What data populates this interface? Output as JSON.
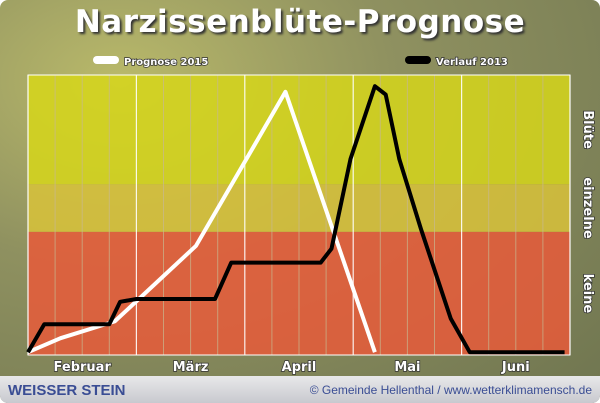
{
  "chart_data": {
    "type": "line",
    "title": "Narzissenblüte-Prognose",
    "x_unit": "weeks from start of Februar",
    "xlim": [
      0,
      20
    ],
    "x_tick_labels": [
      "Februar",
      "März",
      "April",
      "Mai",
      "Juni"
    ],
    "y_band_labels": [
      "keine",
      "einzelne",
      "Blüte"
    ],
    "ylim": [
      0,
      100
    ],
    "bands": [
      {
        "label": "keine",
        "from": 0,
        "to": 44,
        "color": "#e85a3a"
      },
      {
        "label": "einzelne",
        "from": 44,
        "to": 61,
        "color": "#d8c23a"
      },
      {
        "label": "Blüte",
        "from": 61,
        "to": 100,
        "color": "#d6d61a"
      }
    ],
    "grid": true,
    "legend": "top",
    "series": [
      {
        "name": "Prognose 2015",
        "color": "#ffffff",
        "x": [
          0,
          1.2,
          3.2,
          6.2,
          9.5,
          12.8
        ],
        "y": [
          1,
          6,
          12,
          39,
          94,
          1
        ]
      },
      {
        "name": "Verlauf 2013",
        "color": "#000000",
        "x": [
          0,
          0.6,
          3.0,
          3.4,
          4.0,
          6.9,
          7.5,
          10.8,
          11.2,
          11.9,
          12.8,
          13.2,
          13.7,
          14.5,
          15.6,
          16.3,
          19.8
        ],
        "y": [
          1,
          11,
          11,
          19,
          20,
          20,
          33,
          33,
          38,
          70,
          96,
          93,
          70,
          45,
          13,
          1,
          1
        ]
      }
    ]
  },
  "footer": {
    "left": "WEISSER STEIN",
    "right": "© Gemeinde Hellenthal / www.wetterklimamensch.de"
  }
}
